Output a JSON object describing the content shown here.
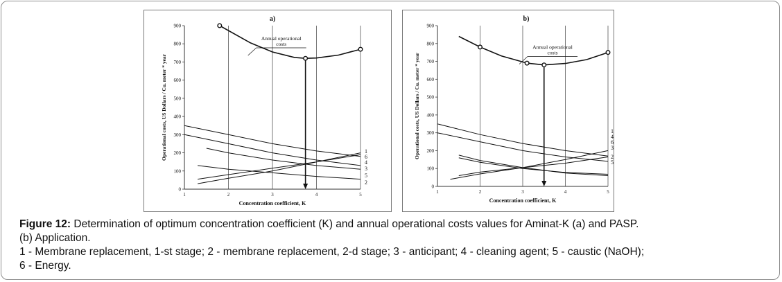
{
  "caption": {
    "lead": "Figure 12:",
    "line1": " Determination of optimum concentration coefficient (K) and annual operational costs values for Aminat-K (a) and PASP.",
    "line2": " (b) Application.",
    "line3": "1 - Membrane replacement, 1-st stage; 2 - membrane replacement, 2-d stage; 3 - anticipant; 4 - cleaning agent; 5 - caustic (NaOH);",
    "line4": "6 - Energy."
  },
  "chart_data": [
    {
      "type": "line",
      "title": "a)",
      "xlabel": "Concentration coefficient, K",
      "ylabel": "Operational costs, US Dollars / Cu. meter * year",
      "xlim": [
        1,
        5
      ],
      "ylim": [
        0,
        900
      ],
      "xticks": [
        "1",
        "2",
        "3",
        "4",
        "5"
      ],
      "yticks": [
        "0",
        "100",
        "200",
        "300",
        "400",
        "500",
        "600",
        "700",
        "800",
        "900"
      ],
      "grid": "vertical",
      "annotation": {
        "text_line1": "Annual operational",
        "text_line2": "costs",
        "x": 3.2,
        "y": 820
      },
      "optimum": {
        "x": 3.75,
        "y": 720
      },
      "series": [
        {
          "name": "Annual operational costs",
          "x": [
            1.8,
            2.5,
            3.0,
            3.5,
            3.75,
            4.0,
            4.5,
            5.0
          ],
          "y": [
            900,
            805,
            755,
            725,
            720,
            722,
            738,
            770
          ],
          "markers": [
            [
              1.8,
              900
            ],
            [
              3.75,
              720
            ],
            [
              5.0,
              770
            ]
          ]
        },
        {
          "name": "1",
          "x": [
            1.0,
            2.0,
            3.0,
            4.0,
            5.0
          ],
          "y": [
            350,
            300,
            250,
            210,
            180
          ]
        },
        {
          "name": "2",
          "x": [
            1.3,
            2.0,
            3.0,
            4.0,
            5.0
          ],
          "y": [
            30,
            60,
            100,
            150,
            200
          ]
        },
        {
          "name": "3",
          "x": [
            1.0,
            2.0,
            3.0,
            4.0,
            5.0
          ],
          "y": [
            300,
            250,
            200,
            160,
            130
          ]
        },
        {
          "name": "4",
          "x": [
            1.3,
            2.0,
            3.0,
            4.0,
            5.0
          ],
          "y": [
            55,
            80,
            115,
            150,
            190
          ]
        },
        {
          "name": "5",
          "x": [
            1.3,
            2.0,
            3.0,
            4.0,
            5.0
          ],
          "y": [
            130,
            110,
            90,
            70,
            55
          ]
        },
        {
          "name": "6",
          "x": [
            1.5,
            2.0,
            3.0,
            4.0,
            5.0
          ],
          "y": [
            225,
            200,
            160,
            130,
            110
          ]
        }
      ],
      "line_labels": [
        "1",
        "6",
        "4",
        "3",
        "5",
        "2"
      ]
    },
    {
      "type": "line",
      "title": "b)",
      "xlabel": "Concentration coefficient, K",
      "ylabel": "Operational costs, US Dollars / Cu. meter * year",
      "xlim": [
        1,
        5
      ],
      "ylim": [
        0,
        900
      ],
      "xticks": [
        "1",
        "2",
        "3",
        "4",
        "5"
      ],
      "yticks": [
        "0",
        "100",
        "200",
        "300",
        "400",
        "500",
        "600",
        "700",
        "800",
        "900"
      ],
      "grid": "vertical",
      "annotation": {
        "text_line1": "Annual operational",
        "text_line2": "costs",
        "x": 3.7,
        "y": 770
      },
      "optimum": {
        "x": 3.5,
        "y": 680
      },
      "series": [
        {
          "name": "Annual operational costs",
          "x": [
            1.5,
            2.0,
            2.5,
            3.1,
            3.5,
            4.0,
            4.5,
            5.0
          ],
          "y": [
            840,
            780,
            730,
            690,
            680,
            688,
            710,
            750
          ],
          "markers": [
            [
              2.0,
              780
            ],
            [
              3.1,
              690
            ],
            [
              3.5,
              680
            ],
            [
              5.0,
              750
            ]
          ]
        },
        {
          "name": "1",
          "x": [
            1.3,
            2.0,
            3.0,
            4.0,
            5.0
          ],
          "y": [
            40,
            70,
            105,
            150,
            200
          ]
        },
        {
          "name": "2",
          "x": [
            1.5,
            2.0,
            3.0,
            4.0,
            5.0
          ],
          "y": [
            160,
            135,
            100,
            78,
            68
          ]
        },
        {
          "name": "3",
          "x": [
            1.5,
            2.0,
            3.0,
            4.0,
            5.0
          ],
          "y": [
            175,
            145,
            105,
            75,
            60
          ]
        },
        {
          "name": "4",
          "x": [
            1.0,
            2.0,
            3.0,
            4.0,
            5.0
          ],
          "y": [
            350,
            290,
            240,
            200,
            170
          ]
        },
        {
          "name": "5",
          "x": [
            1.5,
            2.0,
            3.0,
            4.0,
            5.0
          ],
          "y": [
            60,
            80,
            105,
            130,
            165
          ]
        },
        {
          "name": "6",
          "x": [
            1.0,
            2.0,
            3.0,
            4.0,
            5.0
          ],
          "y": [
            300,
            250,
            200,
            165,
            140
          ]
        }
      ],
      "line_labels": [
        "1",
        "4",
        "6",
        "3",
        "2",
        "5"
      ]
    }
  ]
}
